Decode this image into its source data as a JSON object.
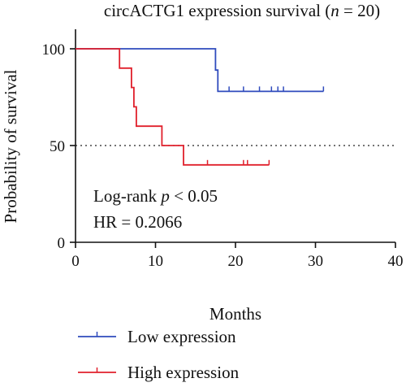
{
  "chart_data": {
    "type": "line",
    "subtype": "kaplan-meier",
    "title_prefix": "circACTG1 expression survival (",
    "title_italic": "n",
    "title_suffix": " = 20)",
    "xlabel": "Months",
    "ylabel": "Probability of survival",
    "xlim": [
      0,
      40
    ],
    "ylim": [
      0,
      100
    ],
    "xticks": [
      0,
      10,
      20,
      30,
      40
    ],
    "yticks": [
      0,
      50,
      100
    ],
    "reference_line": {
      "y": 50,
      "style": "dotted",
      "color": "#222222"
    },
    "annotations": [
      {
        "id": "logrank",
        "prefix": "Log-rank ",
        "italic": "p",
        "suffix": " < 0.05",
        "x": 5.5,
        "y": 23
      },
      {
        "id": "hr",
        "text": "HR = 0.2066",
        "x": 5.5,
        "y": 10
      }
    ],
    "series": [
      {
        "name": "Low expression",
        "color": "#2f4bbd",
        "steps": [
          [
            0,
            100
          ],
          [
            17.5,
            100
          ],
          [
            17.5,
            89
          ],
          [
            17.8,
            89
          ],
          [
            17.8,
            78
          ],
          [
            31,
            78
          ]
        ],
        "censors": [
          [
            19.2,
            78
          ],
          [
            21.0,
            78
          ],
          [
            23.0,
            78
          ],
          [
            24.5,
            78
          ],
          [
            25.3,
            78
          ],
          [
            26.0,
            78
          ],
          [
            31.0,
            78
          ]
        ]
      },
      {
        "name": "High expression",
        "color": "#e0202c",
        "steps": [
          [
            0,
            100
          ],
          [
            5.5,
            100
          ],
          [
            5.5,
            90
          ],
          [
            7.0,
            90
          ],
          [
            7.0,
            80
          ],
          [
            7.3,
            80
          ],
          [
            7.3,
            70
          ],
          [
            7.6,
            70
          ],
          [
            7.6,
            60
          ],
          [
            10.8,
            60
          ],
          [
            10.8,
            50
          ],
          [
            13.5,
            50
          ],
          [
            13.5,
            40
          ],
          [
            24.2,
            40
          ]
        ],
        "censors": [
          [
            16.5,
            40
          ],
          [
            21.0,
            40
          ],
          [
            21.5,
            40
          ],
          [
            24.2,
            40
          ]
        ]
      }
    ],
    "legend": {
      "placement": "bottom"
    }
  }
}
